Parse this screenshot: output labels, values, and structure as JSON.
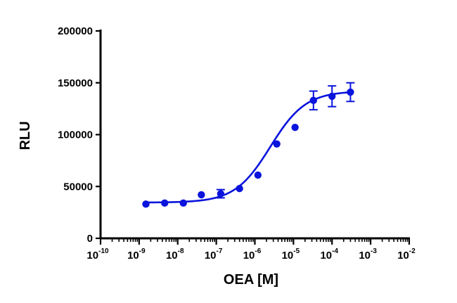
{
  "chart_data": {
    "type": "scatter",
    "xlabel": "OEA [M]",
    "ylabel": "RLU",
    "x_scale": "log",
    "xlim": [
      1e-10,
      0.01
    ],
    "ylim": [
      0,
      200000
    ],
    "x_ticks": [
      {
        "base": "10",
        "exp": "-10"
      },
      {
        "base": "10",
        "exp": "-9"
      },
      {
        "base": "10",
        "exp": "-8"
      },
      {
        "base": "10",
        "exp": "-7"
      },
      {
        "base": "10",
        "exp": "-6"
      },
      {
        "base": "10",
        "exp": "-5"
      },
      {
        "base": "10",
        "exp": "-4"
      },
      {
        "base": "10",
        "exp": "-3"
      },
      {
        "base": "10",
        "exp": "-2"
      }
    ],
    "y_ticks": [
      "0",
      "50000",
      "100000",
      "150000",
      "200000"
    ],
    "series": [
      {
        "points": [
          {
            "x": 1.5e-09,
            "y": 33000,
            "err": 1500
          },
          {
            "x": 4.6e-09,
            "y": 34000,
            "err": 1500
          },
          {
            "x": 1.4e-08,
            "y": 34000,
            "err": 1500
          },
          {
            "x": 4.1e-08,
            "y": 42000,
            "err": 2000
          },
          {
            "x": 1.3e-07,
            "y": 43000,
            "err": 4000
          },
          {
            "x": 4e-07,
            "y": 48000,
            "err": 2000
          },
          {
            "x": 1.2e-06,
            "y": 61000,
            "err": 2000
          },
          {
            "x": 3.7e-06,
            "y": 91000,
            "err": 2500
          },
          {
            "x": 1.1e-05,
            "y": 107000,
            "err": 2000
          },
          {
            "x": 3.3e-05,
            "y": 133000,
            "err": 9000
          },
          {
            "x": 0.0001,
            "y": 137000,
            "err": 10000
          },
          {
            "x": 0.0003,
            "y": 141000,
            "err": 9000
          }
        ],
        "fit": {
          "bottom": 34500,
          "top": 142000,
          "log_ec50": -5.6,
          "hill": 0.95
        }
      }
    ],
    "grid": false,
    "colors": {
      "series": "#0a14dc",
      "axis": "#000000"
    }
  }
}
